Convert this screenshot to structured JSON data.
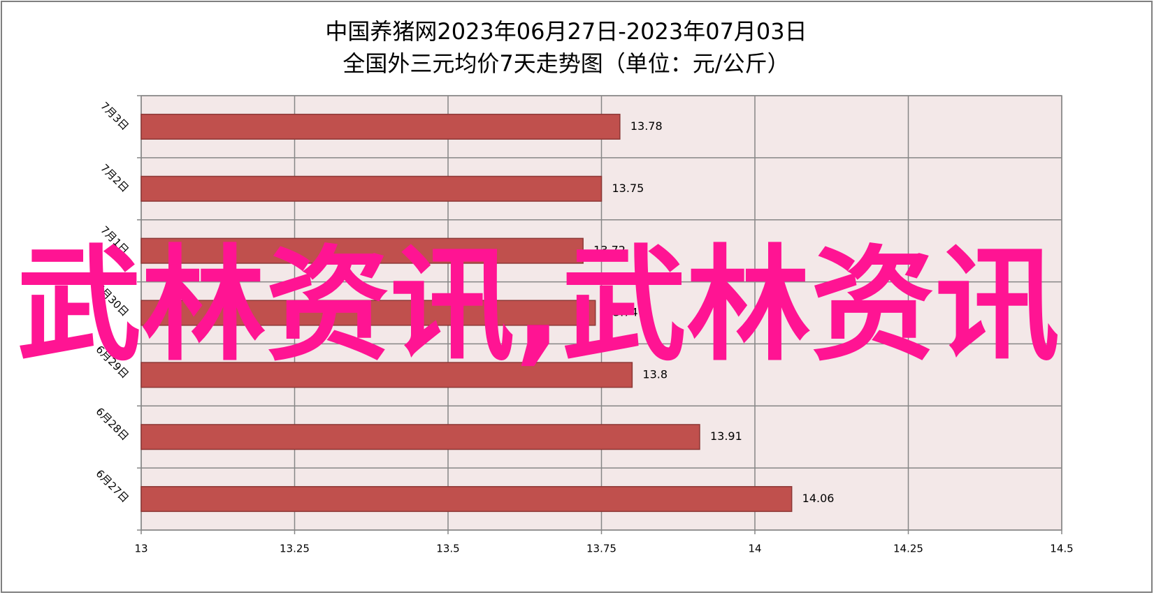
{
  "chart_data": {
    "type": "barh",
    "title": "中国养猪网2023年06月27日-2023年07月03日",
    "subtitle": "全国外三元均价7天走势图（单位：元/公斤）",
    "categories": [
      "6月27日",
      "6月28日",
      "6月29日",
      "6月30日",
      "7月1日",
      "7月2日",
      "7月3日"
    ],
    "values": [
      14.06,
      13.91,
      13.8,
      13.74,
      13.72,
      13.75,
      13.78
    ],
    "color": "#c0504d",
    "xlim": [
      13,
      14.5
    ],
    "xticks": [
      13,
      13.25,
      13.5,
      13.75,
      14,
      14.25,
      14.5
    ],
    "grid": true,
    "watermark": "武林资讯,武林资讯"
  }
}
